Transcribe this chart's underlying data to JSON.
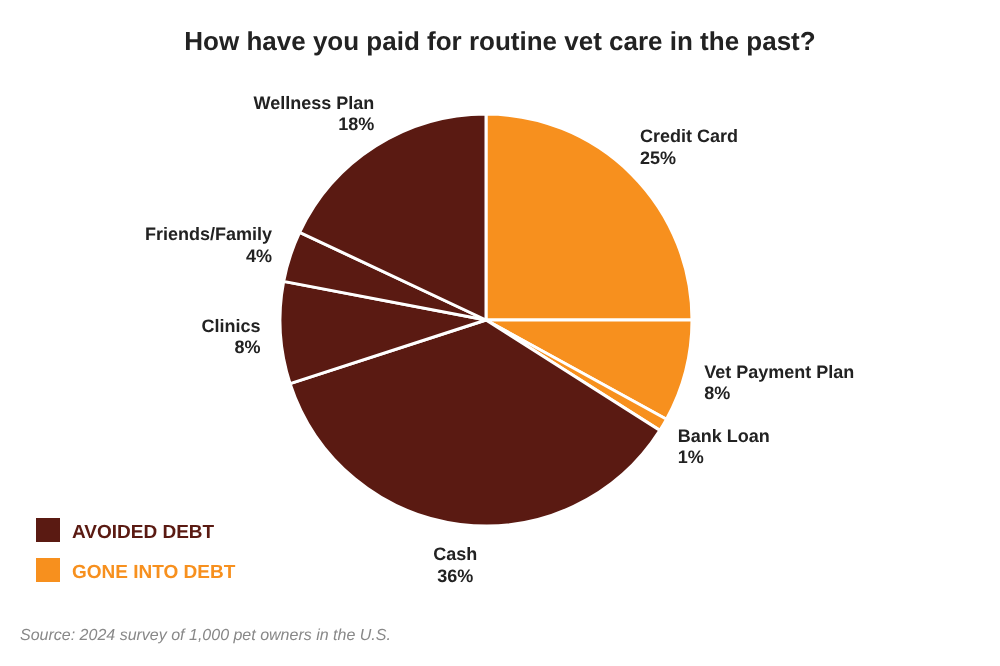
{
  "chart_data": {
    "type": "pie",
    "title": "How have you paid for routine vet care in the past?",
    "categories": [
      "Credit Card",
      "Vet Payment Plan",
      "Bank Loan",
      "Cash",
      "Clinics",
      "Friends/Family",
      "Wellness Plan"
    ],
    "values": [
      25,
      8,
      1,
      36,
      8,
      4,
      18
    ],
    "colors": [
      "#f7901e",
      "#f7901e",
      "#f7901e",
      "#5a1a12",
      "#5a1a12",
      "#5a1a12",
      "#5a1a12"
    ],
    "value_labels": [
      "25%",
      "8%",
      "1%",
      "36%",
      "8%",
      "4%",
      "18%"
    ],
    "annotations": [
      "AVOIDED DEBT",
      "GONE INTO DEBT",
      "Source: 2024 survey of 1,000 pet owners in the U.S."
    ]
  }
}
